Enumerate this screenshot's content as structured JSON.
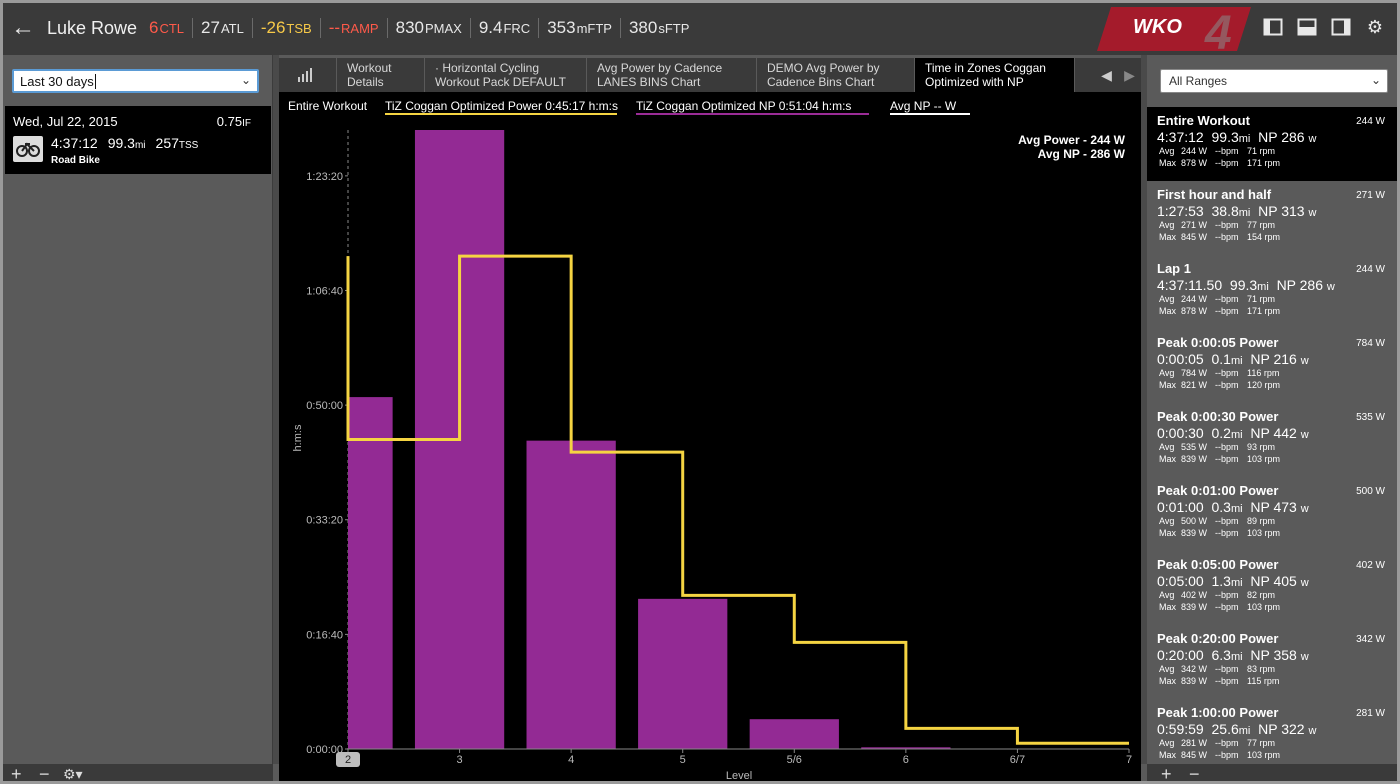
{
  "header": {
    "athlete": "Luke Rowe",
    "metrics": [
      {
        "value": "6",
        "unit": "CTL",
        "color": "#ff5a4a"
      },
      {
        "value": "27",
        "unit": "ATL",
        "color": "#e8e8e8"
      },
      {
        "value": "-26",
        "unit": "TSB",
        "color": "#f7c948"
      },
      {
        "value": "--",
        "unit": "RAMP",
        "color": "#ff5a4a"
      },
      {
        "value": "830",
        "unit": "PMAX",
        "color": "#e8e8e8"
      },
      {
        "value": "9.4",
        "unit": "FRC",
        "color": "#e8e8e8"
      },
      {
        "value": "353",
        "unit": "mFTP",
        "color": "#e8e8e8"
      },
      {
        "value": "380",
        "unit": "sFTP",
        "color": "#e8e8e8"
      }
    ],
    "logo": {
      "text": "WKO",
      "version": "4",
      "color": "#b0182a"
    },
    "icons": [
      "sidebar-left-icon",
      "split-layout-icon",
      "sidebar-right-icon",
      "settings-icon"
    ]
  },
  "left": {
    "date_range": "Last 30 days",
    "workout": {
      "date": "Wed, Jul 22, 2015",
      "if_value": "0.75",
      "if_unit": "IF",
      "duration": "4:37:12",
      "distance": "99.3",
      "distance_unit": "mi",
      "tss": "257",
      "tss_unit": "TSS",
      "sport": "Road Bike"
    },
    "bottom_add": "+",
    "bottom_remove": "−",
    "bottom_settings": "⚙▾"
  },
  "tabs": [
    {
      "label": "Workout Details",
      "active": false
    },
    {
      "label": "· Horizontal Cycling Workout Pack DEFAULT",
      "active": false
    },
    {
      "label": "Avg Power by Cadence LANES BINS Chart",
      "active": false
    },
    {
      "label": "DEMO Avg Power by Cadence Bins Chart",
      "active": false
    },
    {
      "label": "Time in Zones Coggan Optimized with NP",
      "active": true
    }
  ],
  "tab_lines": [
    [
      "Workout",
      "Details"
    ],
    [
      "· Horizontal Cycling",
      "Workout Pack DEFAULT"
    ],
    [
      "Avg Power by Cadence",
      "LANES BINS Chart"
    ],
    [
      "DEMO Avg Power by",
      "Cadence Bins Chart"
    ],
    [
      "Time in Zones Coggan",
      "Optimized with NP"
    ]
  ],
  "legend": {
    "range": "Entire Workout",
    "items": [
      {
        "label": "TiZ Coggan Optimized Power  0:45:17 h:m:s",
        "color": "#f5d442"
      },
      {
        "label": "TiZ Coggan Optimized NP  0:51:04 h:m:s",
        "color": "#9b2c97"
      },
      {
        "label": "Avg NP  -- W",
        "color": "#ffffff"
      }
    ],
    "overlay": [
      "Avg Power - 244 W",
      "Avg NP - 286 W"
    ]
  },
  "chart_data": {
    "type": "bar",
    "xlabel": "Level",
    "ylabel": "h:m:s",
    "y_ticks": [
      "0:00:00",
      "0:16:40",
      "0:33:20",
      "0:50:00",
      "1:06:40",
      "1:23:20"
    ],
    "y_tick_seconds": [
      0,
      1000,
      2000,
      3000,
      4000,
      5000
    ],
    "ylim_seconds": [
      0,
      5400
    ],
    "x_ticks": [
      "2",
      "3",
      "4",
      "5",
      "5/6",
      "6",
      "6/7",
      "7"
    ],
    "series": [
      {
        "name": "TiZ Coggan Optimized NP",
        "style": "bar",
        "color": "#932a94",
        "bars": [
          {
            "from": 0,
            "to": 0.4,
            "value": 3070
          },
          {
            "from": 0.6,
            "to": 1.4,
            "value": 5400
          },
          {
            "from": 1.6,
            "to": 2.4,
            "value": 2690
          },
          {
            "from": 2.6,
            "to": 3.4,
            "value": 1310
          },
          {
            "from": 3.6,
            "to": 4.4,
            "value": 260
          },
          {
            "from": 4.6,
            "to": 5.4,
            "value": 15
          }
        ]
      },
      {
        "name": "TiZ Coggan Optimized Power",
        "style": "step",
        "color": "#f5d442",
        "steps": [
          {
            "from": 0,
            "to": 1,
            "value": 2700
          },
          {
            "from": 1,
            "to": 2,
            "value": 4300
          },
          {
            "from": 2,
            "to": 3,
            "value": 2590
          },
          {
            "from": 3,
            "to": 4,
            "value": 1340
          },
          {
            "from": 4,
            "to": 5,
            "value": 930
          },
          {
            "from": 5,
            "to": 6,
            "value": 180
          },
          {
            "from": 6,
            "to": 7,
            "value": 50
          }
        ],
        "start_value": 4300
      }
    ]
  },
  "right": {
    "range_select": "All Ranges",
    "ranges": [
      {
        "title": "Entire Workout",
        "avg_top": "244 W",
        "time": "4:37:12",
        "dist": "99.3",
        "np": "NP 286",
        "avg_w": "244 W",
        "avg_bpm": "--bpm",
        "avg_rpm": "71 rpm",
        "max_w": "878 W",
        "max_bpm": "--bpm",
        "max_rpm": "171 rpm",
        "selected": true
      },
      {
        "title": "First hour and half",
        "avg_top": "271 W",
        "time": "1:27:53",
        "dist": "38.8",
        "np": "NP 313",
        "avg_w": "271 W",
        "avg_bpm": "--bpm",
        "avg_rpm": "77 rpm",
        "max_w": "845 W",
        "max_bpm": "--bpm",
        "max_rpm": "154 rpm",
        "selected": false
      },
      {
        "title": "Lap 1",
        "avg_top": "244 W",
        "time": "4:37:11.50",
        "dist": "99.3",
        "np": "NP 286",
        "avg_w": "244 W",
        "avg_bpm": "--bpm",
        "avg_rpm": "71 rpm",
        "max_w": "878 W",
        "max_bpm": "--bpm",
        "max_rpm": "171 rpm",
        "selected": false
      },
      {
        "title": "Peak 0:00:05 Power",
        "avg_top": "784 W",
        "time": "0:00:05",
        "dist": "0.1",
        "np": "NP 216",
        "avg_w": "784 W",
        "avg_bpm": "--bpm",
        "avg_rpm": "116 rpm",
        "max_w": "821 W",
        "max_bpm": "--bpm",
        "max_rpm": "120 rpm",
        "selected": false
      },
      {
        "title": "Peak 0:00:30 Power",
        "avg_top": "535 W",
        "time": "0:00:30",
        "dist": "0.2",
        "np": "NP 442",
        "avg_w": "535 W",
        "avg_bpm": "--bpm",
        "avg_rpm": "93 rpm",
        "max_w": "839 W",
        "max_bpm": "--bpm",
        "max_rpm": "103 rpm",
        "selected": false
      },
      {
        "title": "Peak 0:01:00 Power",
        "avg_top": "500 W",
        "time": "0:01:00",
        "dist": "0.3",
        "np": "NP 473",
        "avg_w": "500 W",
        "avg_bpm": "--bpm",
        "avg_rpm": "89 rpm",
        "max_w": "839 W",
        "max_bpm": "--bpm",
        "max_rpm": "103 rpm",
        "selected": false
      },
      {
        "title": "Peak 0:05:00 Power",
        "avg_top": "402 W",
        "time": "0:05:00",
        "dist": "1.3",
        "np": "NP 405",
        "avg_w": "402 W",
        "avg_bpm": "--bpm",
        "avg_rpm": "82 rpm",
        "max_w": "839 W",
        "max_bpm": "--bpm",
        "max_rpm": "103 rpm",
        "selected": false
      },
      {
        "title": "Peak 0:20:00 Power",
        "avg_top": "342 W",
        "time": "0:20:00",
        "dist": "6.3",
        "np": "NP 358",
        "avg_w": "342 W",
        "avg_bpm": "--bpm",
        "avg_rpm": "83 rpm",
        "max_w": "839 W",
        "max_bpm": "--bpm",
        "max_rpm": "115 rpm",
        "selected": false
      },
      {
        "title": "Peak 1:00:00 Power",
        "avg_top": "281 W",
        "time": "0:59:59",
        "dist": "25.6",
        "np": "NP 322",
        "avg_w": "281 W",
        "avg_bpm": "--bpm",
        "avg_rpm": "77 rpm",
        "max_w": "845 W",
        "max_bpm": "--bpm",
        "max_rpm": "103 rpm",
        "selected": false
      }
    ],
    "unit_mi": "mi",
    "unit_w": "w",
    "label_avg": "Avg",
    "label_max": "Max",
    "bottom_add": "+",
    "bottom_remove": "−"
  }
}
